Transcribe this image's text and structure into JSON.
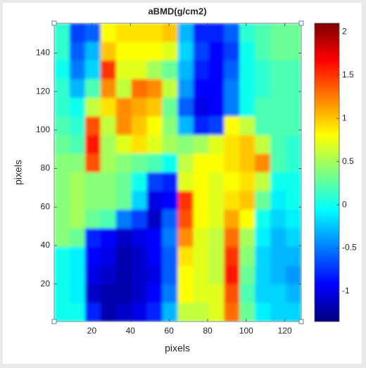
{
  "chart_data": {
    "type": "heatmap",
    "title": "aBMD(g/cm2)",
    "xlabel": "pixels",
    "ylabel": "pixels",
    "xlim": [
      0.5,
      128.5
    ],
    "ylim": [
      0.5,
      155.5
    ],
    "xticks": [
      20,
      40,
      60,
      80,
      100,
      120
    ],
    "yticks": [
      20,
      40,
      60,
      80,
      100,
      120,
      140
    ],
    "colormap": "jet",
    "clim": [
      -1.35,
      2.1
    ],
    "cticks": [
      -1,
      -0.5,
      0,
      0.5,
      1,
      1.5,
      2
    ],
    "z": [
      [
        0.1,
        -0.7,
        -0.6,
        0.8,
        0.9,
        0.9,
        0.9,
        1.0,
        -0.3,
        -0.8,
        -0.8,
        -0.6,
        0.1,
        0.2,
        0.3,
        0.3
      ],
      [
        0.1,
        -0.6,
        -0.3,
        1.0,
        0.8,
        0.8,
        0.8,
        0.7,
        -0.2,
        -0.7,
        -0.9,
        -0.7,
        0.0,
        0.2,
        0.3,
        0.3
      ],
      [
        0.0,
        -0.5,
        -0.2,
        1.5,
        0.7,
        0.7,
        0.5,
        0.3,
        -0.3,
        -0.8,
        -0.9,
        -0.6,
        0.0,
        0.1,
        0.2,
        0.2
      ],
      [
        0.1,
        -0.3,
        0.2,
        1.2,
        0.6,
        1.3,
        1.2,
        0.6,
        -0.4,
        -0.9,
        -0.9,
        -0.5,
        0.0,
        0.1,
        0.2,
        0.2
      ],
      [
        0.1,
        0.0,
        0.6,
        0.9,
        1.2,
        1.1,
        1.0,
        0.3,
        -0.6,
        -1.0,
        -0.9,
        -0.5,
        0.0,
        0.2,
        0.2,
        0.2
      ],
      [
        0.2,
        0.1,
        1.4,
        0.6,
        1.2,
        1.0,
        0.8,
        0.4,
        -0.3,
        -0.8,
        -0.7,
        0.8,
        0.6,
        0.2,
        0.2,
        0.2
      ],
      [
        0.3,
        0.2,
        1.6,
        0.5,
        0.7,
        0.9,
        0.7,
        0.5,
        0.4,
        0.5,
        0.7,
        0.9,
        1.0,
        0.6,
        0.2,
        0.1
      ],
      [
        0.4,
        0.4,
        1.4,
        0.5,
        0.4,
        0.3,
        0.2,
        0.0,
        0.6,
        0.8,
        0.8,
        0.9,
        1.0,
        1.2,
        0.2,
        0.1
      ],
      [
        0.4,
        0.5,
        0.4,
        0.4,
        0.3,
        0.0,
        -0.7,
        -0.8,
        0.7,
        0.8,
        0.7,
        0.8,
        0.9,
        0.6,
        0.0,
        0.0
      ],
      [
        0.4,
        0.5,
        0.4,
        0.4,
        0.3,
        -0.2,
        -1.0,
        -0.9,
        1.5,
        0.8,
        0.7,
        0.9,
        1.0,
        0.3,
        -0.1,
        0.0
      ],
      [
        0.4,
        0.5,
        0.3,
        0.2,
        -0.5,
        -0.7,
        -1.1,
        -0.6,
        1.4,
        0.8,
        0.7,
        1.1,
        0.8,
        0.0,
        -0.2,
        -0.1
      ],
      [
        0.4,
        0.3,
        -0.8,
        -0.9,
        -1.1,
        -1.0,
        -0.9,
        -0.5,
        1.2,
        0.7,
        0.6,
        1.3,
        0.5,
        -0.1,
        -0.3,
        -0.2
      ],
      [
        0.0,
        -0.1,
        -0.9,
        -1.0,
        -1.2,
        -1.1,
        -0.9,
        -0.6,
        0.9,
        0.7,
        0.6,
        1.5,
        0.4,
        -0.2,
        -0.3,
        -0.3
      ],
      [
        0.0,
        -0.1,
        -1.0,
        -1.1,
        -1.2,
        -1.1,
        -1.0,
        -0.6,
        0.8,
        0.7,
        0.6,
        1.6,
        0.3,
        -0.2,
        -0.3,
        -0.4
      ],
      [
        0.0,
        -0.1,
        -1.1,
        -1.2,
        -1.2,
        -1.1,
        -0.9,
        -0.5,
        0.8,
        0.7,
        0.7,
        1.4,
        0.2,
        -0.2,
        -0.2,
        -0.3
      ],
      [
        0.0,
        0.0,
        -0.8,
        -1.2,
        -1.1,
        -1.0,
        -0.8,
        -0.3,
        0.6,
        0.6,
        0.7,
        1.3,
        0.3,
        -0.1,
        -0.2,
        -0.2
      ]
    ]
  }
}
